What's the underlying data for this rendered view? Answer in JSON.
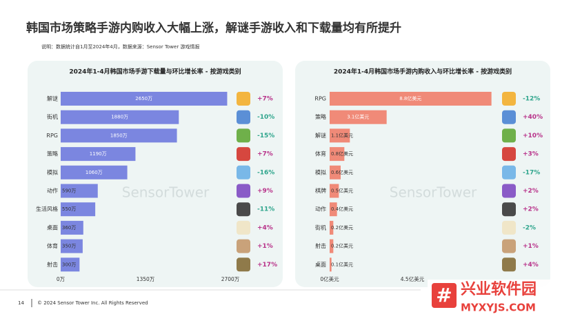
{
  "title": "韩国市场策略手游内购收入大幅上涨，解谜手游收入和下载量均有所提升",
  "note": "说明：数据统计自1月至2024年4月，数据来源：Sensor Tower 游戏情报",
  "footer": {
    "page": "14",
    "copyright": "© 2024 Sensor Tower Inc. All Rights Reserved"
  },
  "watermark": "SensorTower",
  "site_watermark": {
    "name": "兴业软件园",
    "url": "MYXYJS.COM"
  },
  "chart_data": [
    {
      "type": "bar",
      "orientation": "horizontal",
      "title": "2024年1-4月韩国市场手游下载量与环比增长率 - 按游戏类别",
      "categories": [
        "解谜",
        "街机",
        "RPG",
        "策略",
        "模拟",
        "动作",
        "生活风格",
        "桌面",
        "体育",
        "射击"
      ],
      "values": [
        2650,
        1880,
        1850,
        1190,
        1060,
        590,
        550,
        360,
        350,
        300
      ],
      "value_labels": [
        "2650万",
        "1880万",
        "1850万",
        "1190万",
        "1060万",
        "590万",
        "550万",
        "360万",
        "350万",
        "300万"
      ],
      "color": "#7b86e0",
      "xlim": [
        0,
        2700
      ],
      "xticks": [
        {
          "value": 0,
          "label": "0万"
        },
        {
          "value": 1350,
          "label": "1350万"
        },
        {
          "value": 2700,
          "label": "2700万"
        }
      ],
      "growth": [
        7,
        -10,
        -15,
        7,
        -16,
        9,
        -11,
        4,
        1,
        17
      ],
      "growth_labels": [
        "+7%",
        "-10%",
        "-15%",
        "+7%",
        "-16%",
        "+9%",
        "-11%",
        "+4%",
        "+1%",
        "+17%"
      ],
      "growth_colors": {
        "positive": "#b8338a",
        "negative": "#2ea58c"
      }
    },
    {
      "type": "bar",
      "orientation": "horizontal",
      "title": "2024年1-4月韩国市场手游内购收入与环比增长率 - 按游戏类别",
      "categories": [
        "RPG",
        "策略",
        "解谜",
        "体育",
        "模拟",
        "棋牌",
        "动作",
        "街机",
        "射击",
        "桌面"
      ],
      "values": [
        8.8,
        3.1,
        1.1,
        0.8,
        0.6,
        0.5,
        0.4,
        0.2,
        0.2,
        0.1
      ],
      "value_labels": [
        "8.8亿美元",
        "3.1亿美元",
        "1.1亿美元",
        "0.8亿美元",
        "0.6亿美元",
        "0.5亿美元",
        "0.4亿美元",
        "0.2亿美元",
        "0.2亿美元",
        "0.1亿美元"
      ],
      "color": "#f08a78",
      "xlim": [
        0,
        9
      ],
      "xticks": [
        {
          "value": 0,
          "label": "0亿美元"
        },
        {
          "value": 4.5,
          "label": "4.5亿美元"
        }
      ],
      "growth": [
        -12,
        40,
        10,
        3,
        -17,
        2,
        2,
        -2,
        1,
        4
      ],
      "growth_labels": [
        "-12%",
        "+40%",
        "+10%",
        "+3%",
        "-17%",
        "+2%",
        "+2%",
        "-2%",
        "+1%",
        "+4%"
      ],
      "growth_colors": {
        "positive": "#b8338a",
        "negative": "#2ea58c"
      }
    }
  ]
}
